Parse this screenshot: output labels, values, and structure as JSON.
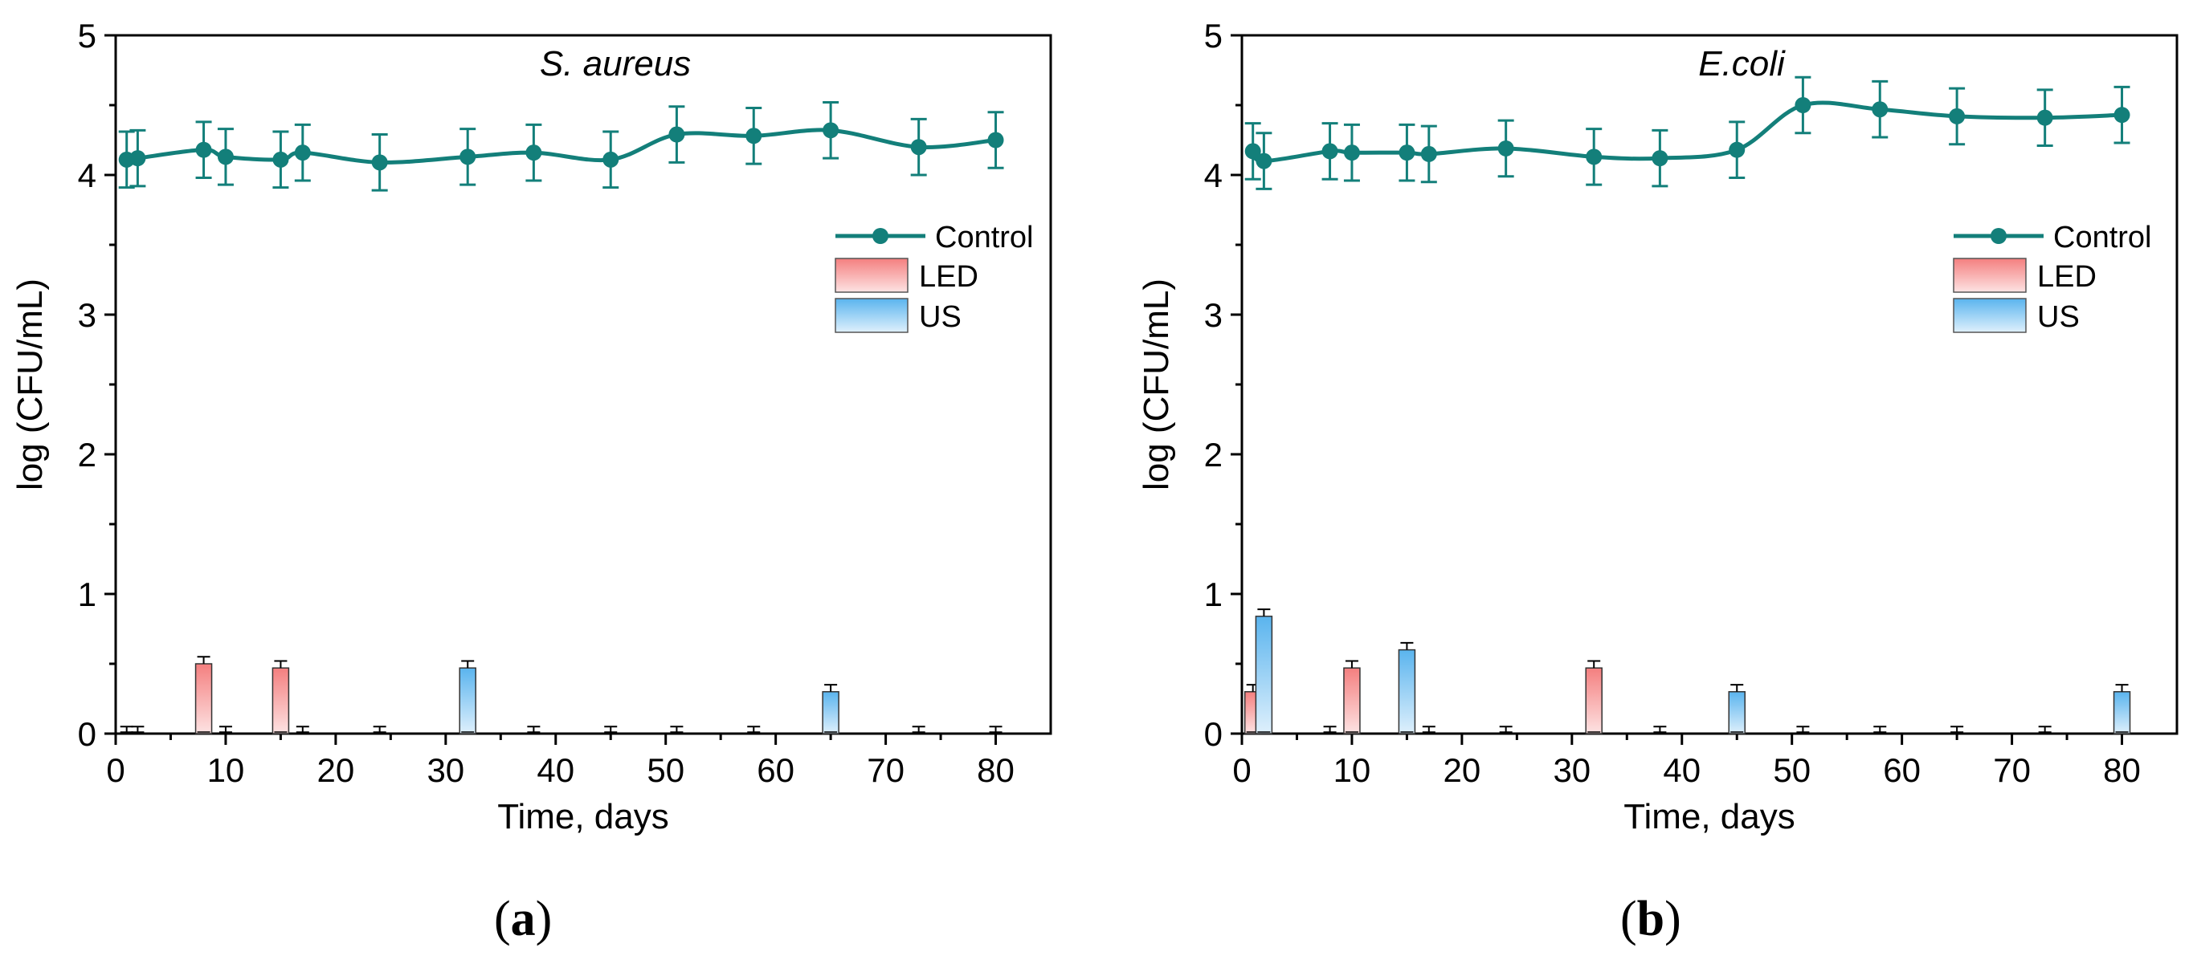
{
  "chart_data": [
    {
      "type": "line+bar",
      "panel": "(a)",
      "panel_letter": "a",
      "title": "S. aureus",
      "xlabel": "Time, days",
      "ylabel": "log (CFU/mL)",
      "xlim": [
        0,
        85
      ],
      "ylim": [
        0,
        5
      ],
      "xticks": [
        0,
        10,
        20,
        30,
        40,
        50,
        60,
        70,
        80
      ],
      "yticks": [
        0,
        1,
        2,
        3,
        4,
        5
      ],
      "legend": {
        "position": "right",
        "entries": [
          "Control",
          "LED",
          "US"
        ]
      },
      "series": [
        {
          "name": "Control",
          "kind": "line",
          "color": "#137f7a",
          "x": [
            1,
            2,
            8,
            10,
            15,
            17,
            24,
            32,
            38,
            45,
            51,
            58,
            65,
            73,
            80
          ],
          "y": [
            4.11,
            4.12,
            4.18,
            4.13,
            4.11,
            4.16,
            4.09,
            4.13,
            4.16,
            4.11,
            4.29,
            4.28,
            4.32,
            4.2,
            4.25
          ],
          "err": [
            0.2,
            0.2,
            0.2,
            0.2,
            0.2,
            0.2,
            0.2,
            0.2,
            0.2,
            0.2,
            0.2,
            0.2,
            0.2,
            0.2,
            0.2
          ]
        },
        {
          "name": "LED",
          "kind": "bar",
          "color": "#f47f7f",
          "x": [
            1,
            8,
            10,
            15,
            17,
            24,
            32,
            38,
            45,
            51,
            58,
            65,
            73,
            80
          ],
          "y": [
            0,
            0.5,
            0,
            0.47,
            0,
            0,
            0,
            0,
            0,
            0,
            0,
            0,
            0,
            0
          ],
          "err": [
            0.05,
            0.05,
            0.05,
            0.05,
            0.05,
            0.05,
            0.05,
            0.05,
            0.05,
            0.05,
            0.05,
            0.05,
            0.05,
            0.05
          ]
        },
        {
          "name": "US",
          "kind": "bar",
          "color": "#5ab4ee",
          "x": [
            2,
            32,
            65
          ],
          "y": [
            0,
            0.47,
            0.3
          ],
          "err": [
            0.05,
            0.05,
            0.05
          ]
        }
      ]
    },
    {
      "type": "line+bar",
      "panel": "(b)",
      "panel_letter": "b",
      "title": "E.coli",
      "xlabel": "Time, days",
      "ylabel": "log (CFU/mL)",
      "xlim": [
        0,
        85
      ],
      "ylim": [
        0,
        5
      ],
      "xticks": [
        0,
        10,
        20,
        30,
        40,
        50,
        60,
        70,
        80
      ],
      "yticks": [
        0,
        1,
        2,
        3,
        4,
        5
      ],
      "legend": {
        "position": "right",
        "entries": [
          "Control",
          "LED",
          "US"
        ]
      },
      "series": [
        {
          "name": "Control",
          "kind": "line",
          "color": "#137f7a",
          "x": [
            1,
            2,
            8,
            10,
            15,
            17,
            24,
            32,
            38,
            45,
            51,
            58,
            65,
            73,
            80
          ],
          "y": [
            4.17,
            4.1,
            4.17,
            4.16,
            4.16,
            4.15,
            4.19,
            4.13,
            4.12,
            4.18,
            4.5,
            4.47,
            4.42,
            4.41,
            4.43
          ],
          "err": [
            0.2,
            0.2,
            0.2,
            0.2,
            0.2,
            0.2,
            0.2,
            0.2,
            0.2,
            0.2,
            0.2,
            0.2,
            0.2,
            0.2,
            0.2
          ]
        },
        {
          "name": "LED",
          "kind": "bar",
          "color": "#f47f7f",
          "x": [
            1,
            10,
            32
          ],
          "y": [
            0.3,
            0.47,
            0.47
          ],
          "err": [
            0.05,
            0.05,
            0.05
          ]
        },
        {
          "name": "US",
          "kind": "bar",
          "color": "#5ab4ee",
          "x": [
            2,
            8,
            15,
            17,
            24,
            38,
            45,
            51,
            58,
            65,
            73,
            80
          ],
          "y": [
            0.84,
            0,
            0.6,
            0,
            0,
            0,
            0.3,
            0,
            0,
            0,
            0,
            0.3
          ],
          "err": [
            0.05,
            0.05,
            0.05,
            0.05,
            0.05,
            0.05,
            0.05,
            0.05,
            0.05,
            0.05,
            0.05,
            0.05
          ]
        }
      ]
    }
  ]
}
